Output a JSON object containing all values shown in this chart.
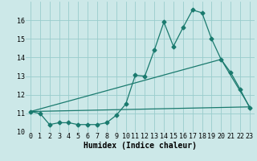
{
  "xlabel": "Humidex (Indice chaleur)",
  "bg_color": "#cce8e8",
  "grid_color": "#99cccc",
  "line_color": "#1a7a6e",
  "xlim": [
    -0.5,
    23.5
  ],
  "ylim": [
    10.0,
    17.0
  ],
  "yticks": [
    10,
    11,
    12,
    13,
    14,
    15,
    16
  ],
  "xticks": [
    0,
    1,
    2,
    3,
    4,
    5,
    6,
    7,
    8,
    9,
    10,
    11,
    12,
    13,
    14,
    15,
    16,
    17,
    18,
    19,
    20,
    21,
    22,
    23
  ],
  "line1_x": [
    0,
    1,
    2,
    3,
    4,
    5,
    6,
    7,
    8,
    9,
    10,
    11,
    12,
    13,
    14,
    15,
    16,
    17,
    18,
    19,
    20,
    21,
    22,
    23
  ],
  "line1_y": [
    11.1,
    11.0,
    10.4,
    10.5,
    10.5,
    10.4,
    10.4,
    10.4,
    10.5,
    10.9,
    11.5,
    13.05,
    13.0,
    14.4,
    15.9,
    14.6,
    15.6,
    16.55,
    16.4,
    15.0,
    13.9,
    13.2,
    12.3,
    11.3
  ],
  "line2_x": [
    0,
    23
  ],
  "line2_y": [
    11.1,
    11.35
  ],
  "line3_x": [
    0,
    20,
    23
  ],
  "line3_y": [
    11.1,
    13.9,
    11.35
  ],
  "xlabel_fontsize": 7,
  "tick_fontsize": 6,
  "marker": "D",
  "markersize": 2.5
}
